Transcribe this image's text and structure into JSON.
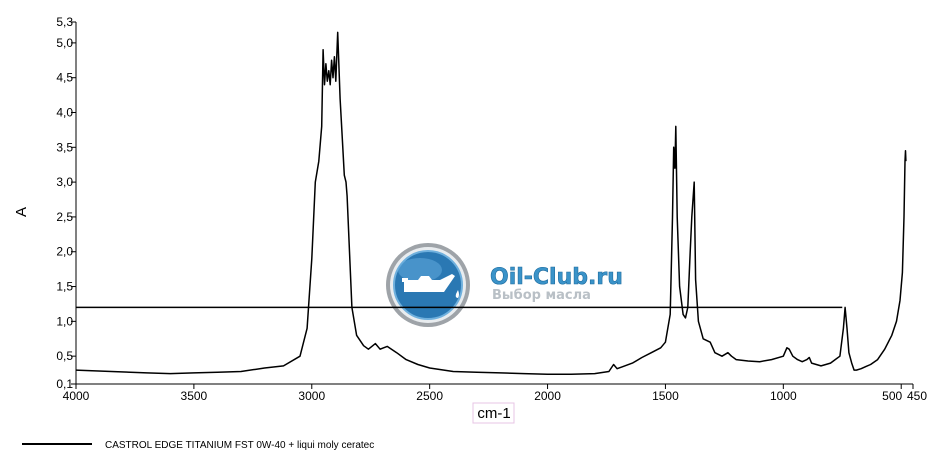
{
  "chart_data": {
    "type": "line",
    "xlabel": "cm-1",
    "ylabel": "A",
    "xlim": [
      4000,
      450
    ],
    "ylim": [
      0.1,
      5.3
    ],
    "x_ticks": [
      {
        "value": 4000,
        "label": "4000"
      },
      {
        "value": 3500,
        "label": "3500"
      },
      {
        "value": 3000,
        "label": "3000"
      },
      {
        "value": 2500,
        "label": "2500"
      },
      {
        "value": 2000,
        "label": "2000"
      },
      {
        "value": 1500,
        "label": "1500"
      },
      {
        "value": 1000,
        "label": "1000"
      },
      {
        "value": 500,
        "label": "500"
      },
      {
        "value": 450,
        "label": "450"
      }
    ],
    "y_ticks": [
      {
        "value": 0.1,
        "label": "0,1"
      },
      {
        "value": 0.5,
        "label": "0,5"
      },
      {
        "value": 1.0,
        "label": "1,0"
      },
      {
        "value": 1.5,
        "label": "1,5"
      },
      {
        "value": 2.0,
        "label": "2,0"
      },
      {
        "value": 2.5,
        "label": "2,5"
      },
      {
        "value": 3.0,
        "label": "3,0"
      },
      {
        "value": 3.5,
        "label": "3,5"
      },
      {
        "value": 4.0,
        "label": "4,0"
      },
      {
        "value": 4.5,
        "label": "4,5"
      },
      {
        "value": 5.0,
        "label": "5,0"
      },
      {
        "value": 5.3,
        "label": "5,3"
      }
    ],
    "reference_line": {
      "y": 1.2,
      "x_from": 4000,
      "x_to": 750
    },
    "legend_position": "bottom-left",
    "series": [
      {
        "name": "CASTROL EDGE TITANIUM FST 0W-40 + liqui moly ceratec",
        "color": "#000000",
        "points": [
          [
            4000,
            0.3
          ],
          [
            3850,
            0.28
          ],
          [
            3700,
            0.26
          ],
          [
            3600,
            0.25
          ],
          [
            3500,
            0.26
          ],
          [
            3400,
            0.27
          ],
          [
            3300,
            0.28
          ],
          [
            3200,
            0.33
          ],
          [
            3120,
            0.36
          ],
          [
            3050,
            0.5
          ],
          [
            3020,
            0.9
          ],
          [
            3000,
            1.9
          ],
          [
            2985,
            3.0
          ],
          [
            2970,
            3.3
          ],
          [
            2958,
            3.8
          ],
          [
            2952,
            4.9
          ],
          [
            2946,
            4.4
          ],
          [
            2940,
            4.7
          ],
          [
            2934,
            4.45
          ],
          [
            2928,
            4.6
          ],
          [
            2922,
            4.4
          ],
          [
            2916,
            4.75
          ],
          [
            2910,
            4.5
          ],
          [
            2904,
            4.8
          ],
          [
            2898,
            4.45
          ],
          [
            2890,
            5.15
          ],
          [
            2880,
            4.2
          ],
          [
            2870,
            3.6
          ],
          [
            2862,
            3.1
          ],
          [
            2855,
            3.0
          ],
          [
            2850,
            2.8
          ],
          [
            2840,
            2.0
          ],
          [
            2830,
            1.2
          ],
          [
            2810,
            0.8
          ],
          [
            2780,
            0.65
          ],
          [
            2760,
            0.6
          ],
          [
            2730,
            0.68
          ],
          [
            2710,
            0.6
          ],
          [
            2680,
            0.64
          ],
          [
            2640,
            0.55
          ],
          [
            2600,
            0.45
          ],
          [
            2550,
            0.38
          ],
          [
            2500,
            0.33
          ],
          [
            2400,
            0.28
          ],
          [
            2300,
            0.27
          ],
          [
            2200,
            0.26
          ],
          [
            2100,
            0.25
          ],
          [
            2000,
            0.24
          ],
          [
            1900,
            0.24
          ],
          [
            1800,
            0.25
          ],
          [
            1740,
            0.28
          ],
          [
            1720,
            0.38
          ],
          [
            1705,
            0.32
          ],
          [
            1680,
            0.35
          ],
          [
            1640,
            0.4
          ],
          [
            1600,
            0.48
          ],
          [
            1560,
            0.55
          ],
          [
            1520,
            0.62
          ],
          [
            1500,
            0.7
          ],
          [
            1480,
            1.1
          ],
          [
            1470,
            2.5
          ],
          [
            1465,
            3.5
          ],
          [
            1460,
            3.2
          ],
          [
            1456,
            3.8
          ],
          [
            1450,
            2.5
          ],
          [
            1440,
            1.5
          ],
          [
            1425,
            1.1
          ],
          [
            1415,
            1.05
          ],
          [
            1405,
            1.2
          ],
          [
            1395,
            2.0
          ],
          [
            1388,
            2.5
          ],
          [
            1378,
            3.0
          ],
          [
            1372,
            1.6
          ],
          [
            1360,
            1.0
          ],
          [
            1340,
            0.75
          ],
          [
            1310,
            0.7
          ],
          [
            1290,
            0.55
          ],
          [
            1260,
            0.5
          ],
          [
            1235,
            0.55
          ],
          [
            1220,
            0.5
          ],
          [
            1200,
            0.45
          ],
          [
            1150,
            0.43
          ],
          [
            1100,
            0.42
          ],
          [
            1050,
            0.45
          ],
          [
            1000,
            0.5
          ],
          [
            985,
            0.62
          ],
          [
            975,
            0.6
          ],
          [
            960,
            0.5
          ],
          [
            940,
            0.45
          ],
          [
            920,
            0.42
          ],
          [
            900,
            0.45
          ],
          [
            890,
            0.48
          ],
          [
            880,
            0.4
          ],
          [
            860,
            0.38
          ],
          [
            840,
            0.36
          ],
          [
            820,
            0.38
          ],
          [
            800,
            0.4
          ],
          [
            780,
            0.45
          ],
          [
            760,
            0.5
          ],
          [
            745,
            0.9
          ],
          [
            738,
            1.2
          ],
          [
            730,
            0.9
          ],
          [
            722,
            0.55
          ],
          [
            710,
            0.4
          ],
          [
            700,
            0.3
          ],
          [
            690,
            0.3
          ],
          [
            670,
            0.32
          ],
          [
            650,
            0.35
          ],
          [
            630,
            0.38
          ],
          [
            600,
            0.45
          ],
          [
            570,
            0.6
          ],
          [
            540,
            0.8
          ],
          [
            520,
            1.0
          ],
          [
            505,
            1.3
          ],
          [
            495,
            1.7
          ],
          [
            488,
            2.5
          ],
          [
            484,
            3.3
          ],
          [
            482,
            3.45
          ],
          [
            480,
            3.3
          ]
        ]
      }
    ]
  },
  "watermark": {
    "title": "Oil-Club.ru",
    "subtitle": "Выбор масла"
  }
}
